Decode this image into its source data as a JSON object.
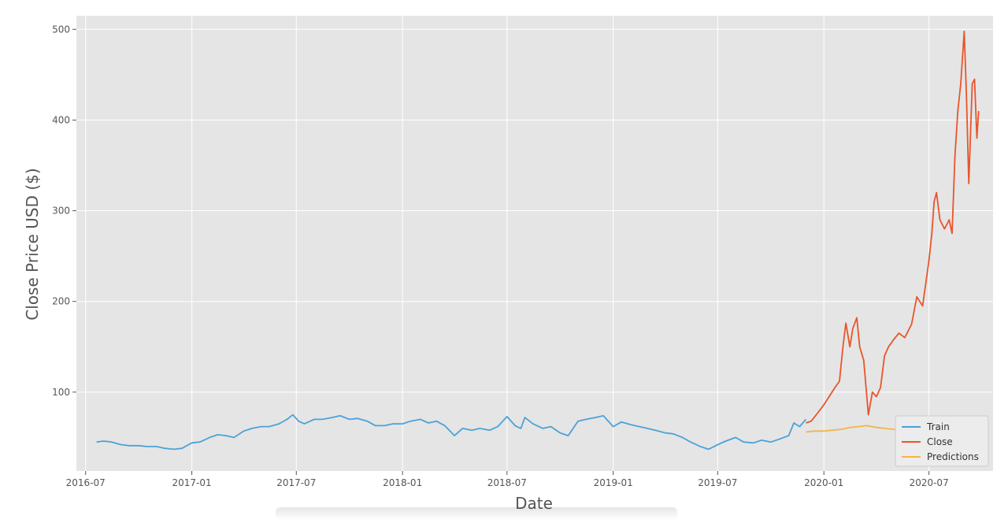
{
  "chart_data": {
    "type": "line",
    "title": "",
    "xlabel": "Date",
    "ylabel": "Close Price USD ($)",
    "x_ticks": [
      "2016-07-01",
      "2017-01-01",
      "2017-07-01",
      "2018-01-01",
      "2018-07-01",
      "2019-01-01",
      "2019-07-01",
      "2020-01-01",
      "2020-07-01"
    ],
    "x_tick_labels": [
      "2016-07",
      "2017-01",
      "2017-07",
      "2018-01",
      "2018-07",
      "2019-01",
      "2019-07",
      "2020-01",
      "2020-07"
    ],
    "y_ticks": [
      100,
      200,
      300,
      400,
      500
    ],
    "xlim": [
      "2016-06-15",
      "2020-10-20"
    ],
    "ylim": [
      13,
      515
    ],
    "grid": true,
    "legend_position": "lower-right",
    "colors": {
      "background": "#e5e5e5",
      "grid": "#ffffff",
      "train": "#4aa3d8",
      "close": "#e8552b",
      "predictions": "#f2b54a"
    },
    "series": [
      {
        "name": "Train",
        "color": "#4aa3d8",
        "x": [
          "2016-07-20",
          "2016-08-01",
          "2016-08-15",
          "2016-09-01",
          "2016-09-15",
          "2016-10-01",
          "2016-10-15",
          "2016-11-01",
          "2016-11-15",
          "2016-12-01",
          "2016-12-15",
          "2017-01-01",
          "2017-01-15",
          "2017-02-01",
          "2017-02-15",
          "2017-03-01",
          "2017-03-15",
          "2017-04-01",
          "2017-04-15",
          "2017-05-01",
          "2017-05-15",
          "2017-06-01",
          "2017-06-15",
          "2017-06-25",
          "2017-07-05",
          "2017-07-15",
          "2017-08-01",
          "2017-08-15",
          "2017-09-01",
          "2017-09-15",
          "2017-10-01",
          "2017-10-15",
          "2017-11-01",
          "2017-11-15",
          "2017-12-01",
          "2017-12-15",
          "2018-01-01",
          "2018-01-15",
          "2018-02-01",
          "2018-02-15",
          "2018-03-01",
          "2018-03-15",
          "2018-04-01",
          "2018-04-15",
          "2018-05-01",
          "2018-05-15",
          "2018-06-01",
          "2018-06-15",
          "2018-07-01",
          "2018-07-15",
          "2018-07-25",
          "2018-08-01",
          "2018-08-15",
          "2018-09-01",
          "2018-09-15",
          "2018-10-01",
          "2018-10-15",
          "2018-11-01",
          "2018-11-15",
          "2018-12-01",
          "2018-12-15",
          "2019-01-01",
          "2019-01-15",
          "2019-02-01",
          "2019-02-15",
          "2019-03-01",
          "2019-03-15",
          "2019-04-01",
          "2019-04-15",
          "2019-05-01",
          "2019-05-15",
          "2019-06-01",
          "2019-06-15",
          "2019-07-01",
          "2019-07-15",
          "2019-08-01",
          "2019-08-15",
          "2019-09-01",
          "2019-09-15",
          "2019-10-01",
          "2019-10-15",
          "2019-11-01",
          "2019-11-10",
          "2019-11-20",
          "2019-12-01"
        ],
        "y": [
          45,
          46,
          45,
          42,
          41,
          41,
          40,
          40,
          38,
          37,
          38,
          44,
          45,
          50,
          53,
          52,
          50,
          57,
          60,
          62,
          62,
          65,
          70,
          75,
          68,
          65,
          70,
          70,
          72,
          74,
          70,
          71,
          68,
          63,
          63,
          65,
          65,
          68,
          70,
          66,
          68,
          63,
          52,
          60,
          58,
          60,
          58,
          62,
          73,
          63,
          60,
          72,
          65,
          60,
          62,
          55,
          52,
          68,
          70,
          72,
          74,
          62,
          67,
          64,
          62,
          60,
          58,
          55,
          54,
          50,
          45,
          40,
          37,
          42,
          46,
          50,
          45,
          44,
          47,
          45,
          48,
          52,
          66,
          62,
          70
        ]
      },
      {
        "name": "Close",
        "color": "#e8552b",
        "x": [
          "2019-12-01",
          "2019-12-10",
          "2019-12-20",
          "2020-01-01",
          "2020-01-10",
          "2020-01-20",
          "2020-01-28",
          "2020-02-03",
          "2020-02-08",
          "2020-02-15",
          "2020-02-20",
          "2020-02-27",
          "2020-03-03",
          "2020-03-10",
          "2020-03-18",
          "2020-03-25",
          "2020-04-01",
          "2020-04-08",
          "2020-04-15",
          "2020-04-22",
          "2020-05-01",
          "2020-05-10",
          "2020-05-20",
          "2020-06-01",
          "2020-06-10",
          "2020-06-20",
          "2020-07-01",
          "2020-07-06",
          "2020-07-10",
          "2020-07-14",
          "2020-07-20",
          "2020-07-28",
          "2020-08-05",
          "2020-08-10",
          "2020-08-15",
          "2020-08-20",
          "2020-08-25",
          "2020-08-31",
          "2020-09-04",
          "2020-09-08",
          "2020-09-14",
          "2020-09-18",
          "2020-09-22",
          "2020-09-25"
        ],
        "y": [
          66,
          68,
          76,
          86,
          95,
          105,
          112,
          150,
          176,
          150,
          170,
          182,
          150,
          135,
          75,
          100,
          95,
          105,
          140,
          150,
          158,
          165,
          160,
          175,
          205,
          195,
          245,
          275,
          310,
          320,
          290,
          280,
          290,
          275,
          360,
          410,
          440,
          498,
          425,
          330,
          440,
          445,
          380,
          410
        ]
      },
      {
        "name": "Predictions",
        "color": "#f2b54a",
        "x": [
          "2019-12-01",
          "2019-12-15",
          "2020-01-01",
          "2020-01-15",
          "2020-02-01",
          "2020-02-15",
          "2020-03-01",
          "2020-03-15",
          "2020-04-01",
          "2020-04-15",
          "2020-05-01",
          "2020-05-15",
          "2020-06-01",
          "2020-06-15",
          "2020-07-01",
          "2020-07-15",
          "2020-08-01",
          "2020-08-15",
          "2020-09-01",
          "2020-09-15",
          "2020-09-25"
        ],
        "y": [
          56,
          57,
          57,
          58,
          59,
          61,
          62,
          63,
          61,
          60,
          59,
          57,
          55,
          56,
          57,
          58,
          59,
          60,
          61,
          62,
          63
        ]
      }
    ]
  }
}
